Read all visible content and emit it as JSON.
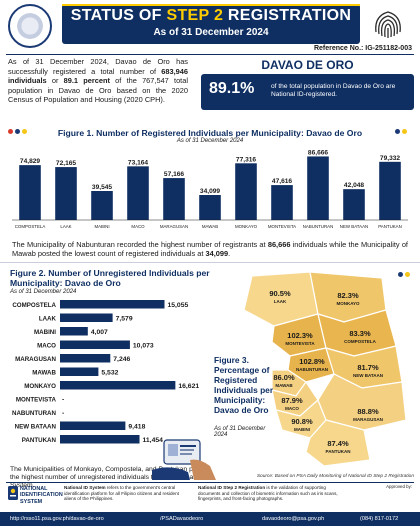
{
  "header": {
    "title_prefix": "STATUS OF ",
    "title_accent": "STEP 2",
    "title_suffix": " REGISTRATION",
    "as_of": "As of 31 December 2024",
    "reference": "Reference No.: IG-251182-003",
    "colors": {
      "navy": "#0f2f63",
      "gold": "#ffcc00"
    }
  },
  "intro": {
    "t1": "As of 31 December 2024, Davao de Oro has successfully registered a total number of ",
    "b1": "683,946 individuals",
    "t2": " or ",
    "b2": "89.1 percent",
    "t3": " of the 767,547 total population in Davao de Oro based on the 2020 Census of Population and Housing (2020 CPH)."
  },
  "highlight": {
    "province": "DAVAO DE ORO",
    "percent": "89.1%",
    "text": "of the total population in Davao de Oro are National ID-registered."
  },
  "fig1": {
    "title": "Figure 1. Number of Registered Individuals per Municipality: Davao de Oro",
    "subtitle": "As of 31 December 2024",
    "chart_data": {
      "type": "bar",
      "categories": [
        "COMPOSTELA",
        "LAAK",
        "MABINI",
        "MACO",
        "MARAGUSAN",
        "MAWAB",
        "MONKAYO",
        "MONTEVISTA",
        "NABUNTURAN",
        "NEW BATAAN",
        "PANTUKAN"
      ],
      "values": [
        74829,
        72165,
        39545,
        73164,
        57166,
        34099,
        77316,
        47616,
        86666,
        42048,
        79332
      ],
      "labels": [
        "74,829",
        "72,165",
        "39,545",
        "73,164",
        "57,166",
        "34,099",
        "77,316",
        "47,616",
        "86,666",
        "42,048",
        "79,332"
      ],
      "ylim": [
        0,
        90000
      ],
      "color": "#0f2f63"
    },
    "note_t1": "The Municipality of Nabunturan recorded the highest number of registrants at ",
    "note_b1": "86,666",
    "note_t2": " individuals while the Municipality of Mawab posted the lowest count of registered individuals at ",
    "note_b2": "34,099",
    "note_t3": "."
  },
  "fig2": {
    "title": "Figure 2. Number of Unregistered Individuals per Municipality: Davao de Oro",
    "subtitle": "As of 31 December 2024",
    "chart_data": {
      "type": "bar",
      "orientation": "horizontal",
      "categories": [
        "COMPOSTELA",
        "LAAK",
        "MABINI",
        "MACO",
        "MARAGUSAN",
        "MAWAB",
        "MONKAYO",
        "MONTEVISTA",
        "NABUNTURAN",
        "NEW BATAAN",
        "PANTUKAN"
      ],
      "values": [
        15055,
        7579,
        4007,
        10073,
        7246,
        5532,
        16621,
        null,
        null,
        9418,
        11454
      ],
      "labels": [
        "15,055",
        "7,579",
        "4,007",
        "10,073",
        "7,246",
        "5,532",
        "16,621",
        "-",
        "-",
        "9,418",
        "11,454"
      ],
      "xlim": [
        0,
        17000
      ],
      "color": "#0f2f63"
    },
    "note": "The Municipalities of Monkayo, Compostela, and Pantukan posted the highest number of unregistered individuals to the National ID System."
  },
  "fig3": {
    "title": "Figure 3. Percentage of Registered Individuals per Municipality: Davao de Oro",
    "subtitle": "As of 31 December 2024",
    "source": "Source: Based on PSA Daily Monitoring of National ID Step 2 Registration",
    "regions": [
      {
        "pct": "90.5%",
        "name": "LAAK",
        "fill": "#f6d78c"
      },
      {
        "pct": "82.3%",
        "name": "MONKAYO",
        "fill": "#f0c66a"
      },
      {
        "pct": "102.3%",
        "name": "MONTEVISTA",
        "fill": "#e7b34c"
      },
      {
        "pct": "83.3%",
        "name": "COMPOSTELA",
        "fill": "#e9b54e"
      },
      {
        "pct": "102.8%",
        "name": "NABUNTURAN",
        "fill": "#e7b34c"
      },
      {
        "pct": "86.0%",
        "name": "MAWAB",
        "fill": "#f4d082"
      },
      {
        "pct": "81.7%",
        "name": "NEW BATAAN",
        "fill": "#f0c66a"
      },
      {
        "pct": "87.9%",
        "name": "MACO",
        "fill": "#f4d082"
      },
      {
        "pct": "90.8%",
        "name": "MABINI",
        "fill": "#f6d78c"
      },
      {
        "pct": "88.8%",
        "name": "MARAGUSAN",
        "fill": "#f4d082"
      },
      {
        "pct": "87.4%",
        "name": "PANTUKAN",
        "fill": "#f6d78c"
      }
    ]
  },
  "footer": {
    "nid_name": "NATIONAL IDENTIFICATION SYSTEM",
    "nid_text_b": "National ID System",
    "nid_text": " refers to the government's central identification platform for all Filipino citizens and resident aliens of the Philippines.",
    "step2_text_b": "National ID Step 2 Registration",
    "step2_text": " is the validation of supporting documents and collection of biometric information such as iris scans, fingerprints, and front-facing photographs.",
    "approved": "Approved by:",
    "website": "http://rsso11.psa.gov.ph/davao-de-oro",
    "facebook": "/PSADavaodeoro",
    "email": "davaodeoro@psa.gov.ph",
    "phone": "(084) 817-0172"
  }
}
